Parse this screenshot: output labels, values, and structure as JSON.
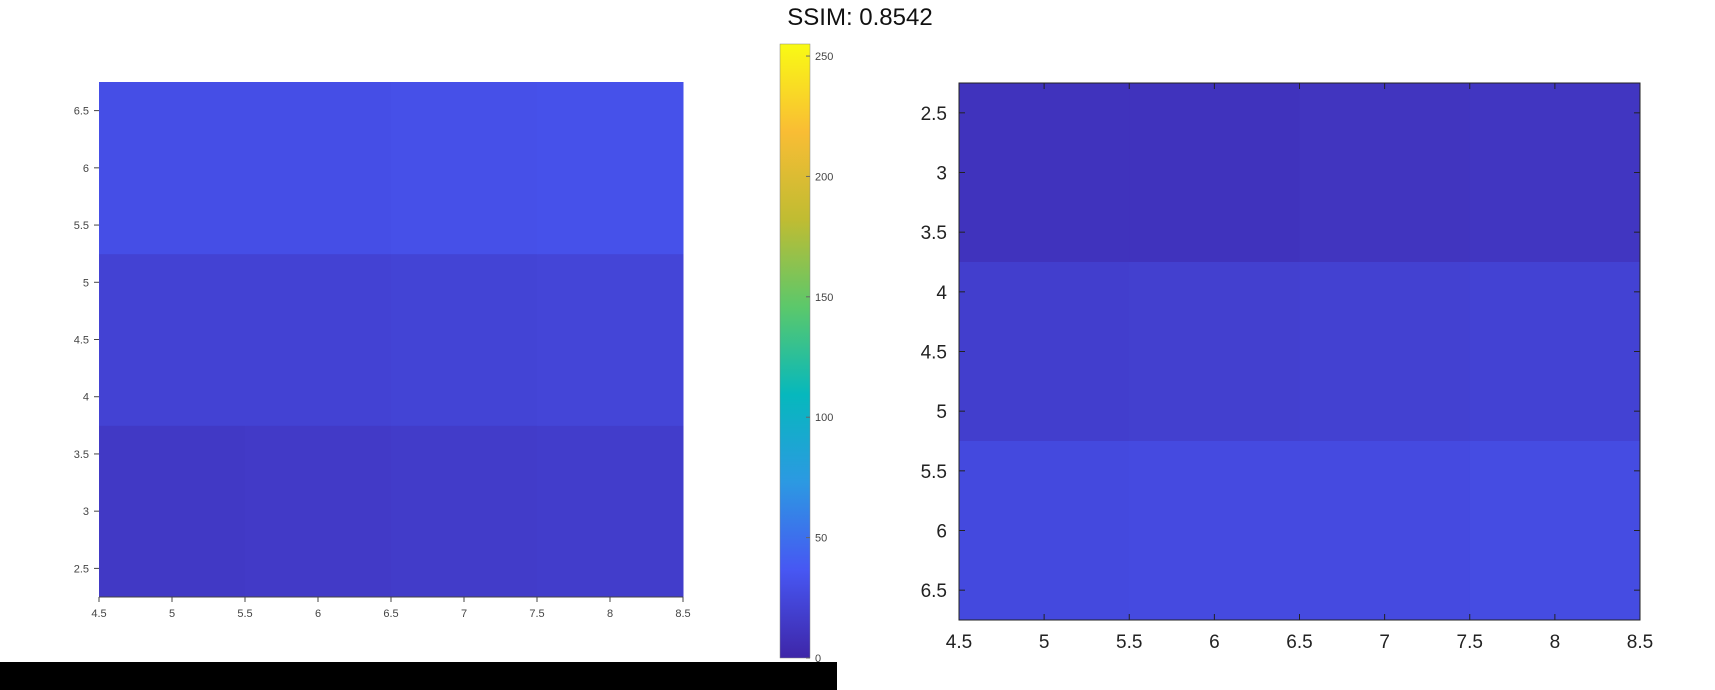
{
  "title": "SSIM: 0.8542",
  "colorbar": {
    "range": [
      0,
      255
    ],
    "ticks": [
      "0",
      "50",
      "100",
      "150",
      "200",
      "250"
    ],
    "colormap": "parula",
    "stops": [
      "#3e26a8",
      "#4757f3",
      "#2c99e2",
      "#06b8bd",
      "#5bc86b",
      "#c0bc32",
      "#f9bd34",
      "#f9fa14"
    ]
  },
  "chart_data": [
    {
      "type": "heatmap",
      "title": "",
      "xlabel": "",
      "ylabel": "",
      "x_ticks": [
        "4.5",
        "5",
        "5.5",
        "6",
        "6.5",
        "7",
        "7.5",
        "8",
        "8.5"
      ],
      "y_ticks": [
        "2.5",
        "3",
        "3.5",
        "4",
        "4.5",
        "5",
        "5.5",
        "6",
        "6.5"
      ],
      "xlim": [
        4.5,
        8.5
      ],
      "ylim": [
        2.25,
        6.75
      ],
      "y_direction": "up",
      "columns": [
        5,
        6,
        7,
        8
      ],
      "rows": [
        3,
        4.5,
        6
      ],
      "values": [
        [
          14,
          15,
          16,
          17
        ],
        [
          21,
          21,
          22,
          23
        ],
        [
          30,
          30,
          31,
          32
        ]
      ]
    },
    {
      "type": "heatmap",
      "title": "",
      "xlabel": "",
      "ylabel": "",
      "x_ticks": [
        "4.5",
        "5",
        "5.5",
        "6",
        "6.5",
        "7",
        "7.5",
        "8",
        "8.5"
      ],
      "y_ticks": [
        "2.5",
        "3",
        "3.5",
        "4",
        "4.5",
        "5",
        "5.5",
        "6",
        "6.5"
      ],
      "xlim": [
        4.5,
        8.5
      ],
      "ylim": [
        2.25,
        6.75
      ],
      "y_direction": "down",
      "columns": [
        5,
        6,
        7,
        8
      ],
      "rows": [
        3,
        4.5,
        6
      ],
      "values": [
        [
          10,
          10,
          11,
          12
        ],
        [
          18,
          19,
          20,
          21
        ],
        [
          26,
          27,
          27,
          28
        ]
      ]
    }
  ]
}
